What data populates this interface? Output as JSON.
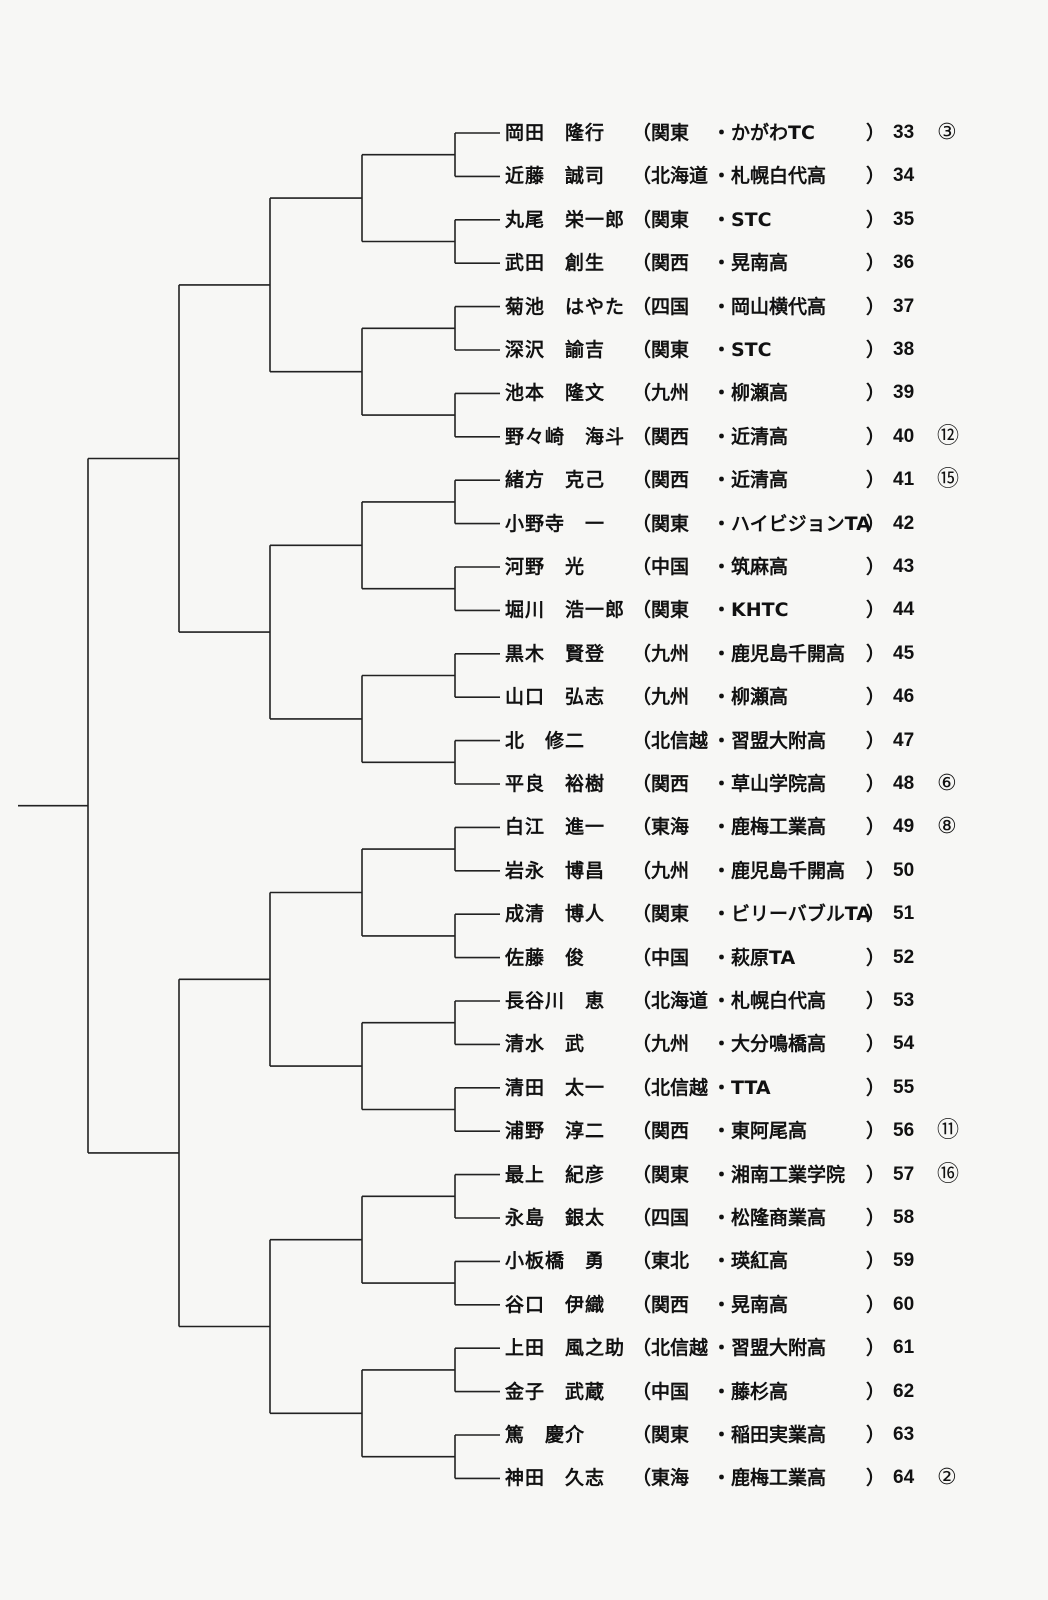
{
  "entries": [
    {
      "name": "岡田　隆行",
      "region": "（関東",
      "school": "・かがわTC",
      "close": "）",
      "number": "33",
      "seed": "③"
    },
    {
      "name": "近藤　誠司",
      "region": "（北海道",
      "school": "・札幌白代高",
      "close": "）",
      "number": "34",
      "seed": ""
    },
    {
      "name": "丸尾　栄一郎",
      "region": "（関東",
      "school": "・STC",
      "close": "）",
      "number": "35",
      "seed": ""
    },
    {
      "name": "武田　創生",
      "region": "（関西",
      "school": "・晃南高",
      "close": "）",
      "number": "36",
      "seed": ""
    },
    {
      "name": "菊池　はやた",
      "region": "（四国",
      "school": "・岡山横代高",
      "close": "）",
      "number": "37",
      "seed": ""
    },
    {
      "name": "深沢　諭吉",
      "region": "（関東",
      "school": "・STC",
      "close": "）",
      "number": "38",
      "seed": ""
    },
    {
      "name": "池本　隆文",
      "region": "（九州",
      "school": "・柳瀬高",
      "close": "）",
      "number": "39",
      "seed": ""
    },
    {
      "name": "野々崎　海斗",
      "region": "（関西",
      "school": "・近清高",
      "close": "）",
      "number": "40",
      "seed": "⑫"
    },
    {
      "name": "緒方　克己",
      "region": "（関西",
      "school": "・近清高",
      "close": "）",
      "number": "41",
      "seed": "⑮"
    },
    {
      "name": "小野寺　一",
      "region": "（関東",
      "school": "・ハイビジョンTA",
      "close": "）",
      "number": "42",
      "seed": ""
    },
    {
      "name": "河野　光",
      "region": "（中国",
      "school": "・筑麻高",
      "close": "）",
      "number": "43",
      "seed": ""
    },
    {
      "name": "堀川　浩一郎",
      "region": "（関東",
      "school": "・KHTC",
      "close": "）",
      "number": "44",
      "seed": ""
    },
    {
      "name": "黒木　賢登",
      "region": "（九州",
      "school": "・鹿児島千開高",
      "close": "）",
      "number": "45",
      "seed": ""
    },
    {
      "name": "山口　弘志",
      "region": "（九州",
      "school": "・柳瀬高",
      "close": "）",
      "number": "46",
      "seed": ""
    },
    {
      "name": "北　修二",
      "region": "（北信越",
      "school": "・習盟大附高",
      "close": "）",
      "number": "47",
      "seed": ""
    },
    {
      "name": "平良　裕樹",
      "region": "（関西",
      "school": "・草山学院高",
      "close": "）",
      "number": "48",
      "seed": "⑥"
    },
    {
      "name": "白江　進一",
      "region": "（東海",
      "school": "・鹿梅工業高",
      "close": "）",
      "number": "49",
      "seed": "⑧"
    },
    {
      "name": "岩永　博昌",
      "region": "（九州",
      "school": "・鹿児島千開高",
      "close": "）",
      "number": "50",
      "seed": ""
    },
    {
      "name": "成清　博人",
      "region": "（関東",
      "school": "・ビリーバブルTA",
      "close": "）",
      "number": "51",
      "seed": ""
    },
    {
      "name": "佐藤　俊",
      "region": "（中国",
      "school": "・萩原TA",
      "close": "）",
      "number": "52",
      "seed": ""
    },
    {
      "name": "長谷川　恵",
      "region": "（北海道",
      "school": "・札幌白代高",
      "close": "）",
      "number": "53",
      "seed": ""
    },
    {
      "name": "清水　武",
      "region": "（九州",
      "school": "・大分鳴橋高",
      "close": "）",
      "number": "54",
      "seed": ""
    },
    {
      "name": "清田　太一",
      "region": "（北信越",
      "school": "・TTA",
      "close": "）",
      "number": "55",
      "seed": ""
    },
    {
      "name": "浦野　淳二",
      "region": "（関西",
      "school": "・東阿尾高",
      "close": "）",
      "number": "56",
      "seed": "⑪"
    },
    {
      "name": "最上　紀彦",
      "region": "（関東",
      "school": "・湘南工業学院",
      "close": "）",
      "number": "57",
      "seed": "⑯"
    },
    {
      "name": "永島　銀太",
      "region": "（四国",
      "school": "・松隆商業高",
      "close": "）",
      "number": "58",
      "seed": ""
    },
    {
      "name": "小板橋　勇",
      "region": "（東北",
      "school": "・瑛紅高",
      "close": "）",
      "number": "59",
      "seed": ""
    },
    {
      "name": "谷口　伊織",
      "region": "（関西",
      "school": "・晃南高",
      "close": "）",
      "number": "60",
      "seed": ""
    },
    {
      "name": "上田　風之助",
      "region": "（北信越",
      "school": "・習盟大附高",
      "close": "）",
      "number": "61",
      "seed": ""
    },
    {
      "name": "金子　武蔵",
      "region": "（中国",
      "school": "・藤杉高",
      "close": "）",
      "number": "62",
      "seed": ""
    },
    {
      "name": "篤　慶介",
      "region": "（関東",
      "school": "・稲田実業高",
      "close": "）",
      "number": "63",
      "seed": ""
    },
    {
      "name": "神田　久志",
      "region": "（東海",
      "school": "・鹿梅工業高",
      "close": "）",
      "number": "64",
      "seed": "②"
    }
  ]
}
